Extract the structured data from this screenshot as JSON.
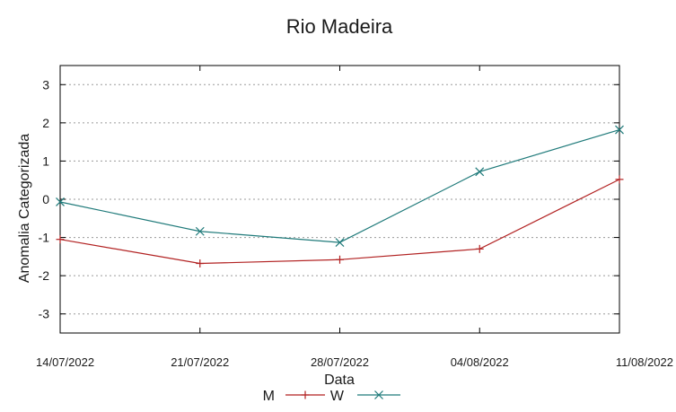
{
  "chart_data": {
    "type": "line",
    "title": "Rio Madeira",
    "xlabel": "Data",
    "ylabel": "Anomalia Categorizada",
    "x": [
      "14/07/2022",
      "21/07/2022",
      "28/07/2022",
      "04/08/2022",
      "11/08/2022"
    ],
    "ylim": [
      -3.5,
      3.5
    ],
    "yticks": [
      -3,
      -2,
      -1,
      0,
      1,
      2,
      3
    ],
    "ytick_labels": [
      "-3",
      "-2",
      "-1",
      "0",
      "1",
      "2",
      "3"
    ],
    "grid": true,
    "legend_position": "bottom-center",
    "series": [
      {
        "name": "M",
        "values": [
          -1.05,
          -1.68,
          -1.58,
          -1.3,
          0.52
        ],
        "color": "#b22222",
        "marker": "plus"
      },
      {
        "name": "W",
        "values": [
          -0.07,
          -0.84,
          -1.13,
          0.72,
          1.82
        ],
        "color": "#1f7a7a",
        "marker": "cross"
      }
    ]
  }
}
